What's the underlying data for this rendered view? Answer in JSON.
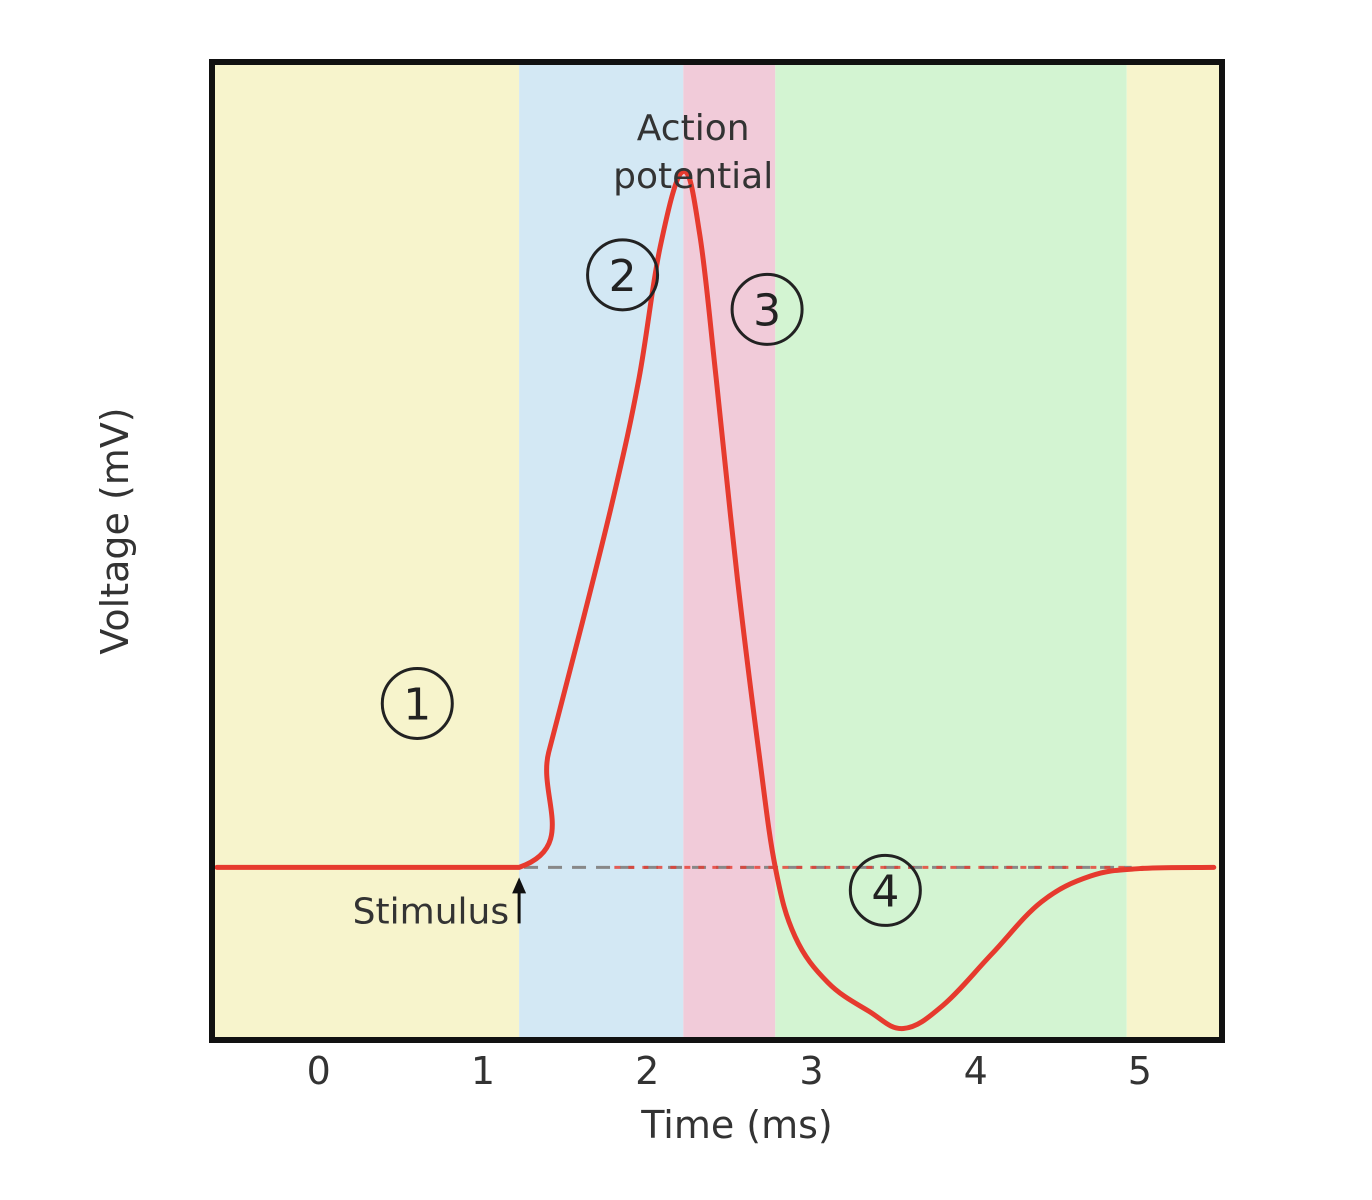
{
  "chart_data": {
    "type": "line",
    "title": "",
    "xlabel": "Time (ms)",
    "ylabel": "Voltage (mV)",
    "xlim": [
      -0.65,
      5.5
    ],
    "ylim": [
      -100,
      70
    ],
    "xticks": [
      "0",
      "1",
      "2",
      "3",
      "4",
      "5"
    ],
    "grid": false,
    "legend": "none",
    "resting_level": -70,
    "regions": [
      {
        "phase": "1",
        "x0": -0.65,
        "x1": 1.22,
        "color": "#f7f4cc"
      },
      {
        "phase": "2",
        "x0": 1.22,
        "x1": 2.22,
        "color": "#d3e8f4"
      },
      {
        "phase": "3",
        "x0": 2.22,
        "x1": 2.78,
        "color": "#f1cbd9"
      },
      {
        "phase": "4",
        "x0": 2.78,
        "x1": 4.92,
        "color": "#d3f4d2"
      },
      {
        "phase": "",
        "x0": 4.92,
        "x1": 5.5,
        "color": "#f7f4cc"
      }
    ],
    "series": [
      {
        "color": "#e63a2e",
        "points": [
          [
            -0.62,
            -70
          ],
          [
            1.22,
            -70
          ],
          [
            1.4,
            -50
          ],
          [
            1.6,
            -28
          ],
          [
            1.8,
            -5
          ],
          [
            1.95,
            15
          ],
          [
            2.08,
            38
          ],
          [
            2.22,
            51
          ],
          [
            2.32,
            40
          ],
          [
            2.42,
            15
          ],
          [
            2.55,
            -20
          ],
          [
            2.68,
            -50
          ],
          [
            2.78,
            -70
          ],
          [
            2.9,
            -82
          ],
          [
            3.1,
            -90
          ],
          [
            3.35,
            -95
          ],
          [
            3.56,
            -98
          ],
          [
            3.8,
            -94
          ],
          [
            4.1,
            -85
          ],
          [
            4.4,
            -76
          ],
          [
            4.7,
            -71.5
          ],
          [
            5.0,
            -70.2
          ],
          [
            5.45,
            -70
          ]
        ]
      }
    ],
    "annotations": {
      "action_potential_line1": "Action",
      "action_potential_line2": "potential",
      "stimulus": "Stimulus",
      "phase_labels": [
        "1",
        "2",
        "3",
        "4"
      ]
    }
  }
}
